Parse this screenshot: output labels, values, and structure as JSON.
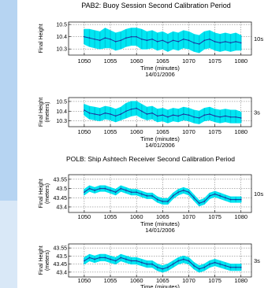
{
  "titles": {
    "buoy": "PAB2: Buoy Session  Second Calibration Period",
    "ship": "POLB: Ship Ashtech Receiver  Second Calibration Period"
  },
  "colors": {
    "background": "#b6d4f2",
    "figure": "#ffffff",
    "band": "#00e6f2",
    "trace": "#1f2f9a",
    "grid": "#666666"
  },
  "chart_data": [
    {
      "type": "line",
      "group": "PAB2",
      "ylabel": "Final Height",
      "xlabel": "Time (minutes)",
      "date": "14/01/2006",
      "xlim": [
        1047,
        1082
      ],
      "ylim": [
        10.25,
        10.52
      ],
      "xticks": [
        1050,
        1055,
        1060,
        1065,
        1070,
        1075,
        1080
      ],
      "yticks": [
        "10.5",
        "10.4",
        "10.3"
      ],
      "ytick_values": [
        10.5,
        10.4,
        10.3
      ],
      "tag": "10s",
      "grid": true,
      "series": [
        {
          "x": [
            1050,
            1051,
            1052,
            1053,
            1054,
            1055,
            1056,
            1057,
            1058,
            1059,
            1060,
            1061,
            1062,
            1063,
            1064,
            1065,
            1066,
            1067,
            1068,
            1069,
            1070,
            1071,
            1072,
            1073,
            1074,
            1075,
            1076,
            1077,
            1078,
            1079,
            1080
          ],
          "mean": [
            10.4,
            10.39,
            10.38,
            10.37,
            10.39,
            10.38,
            10.36,
            10.37,
            10.39,
            10.4,
            10.4,
            10.38,
            10.37,
            10.38,
            10.36,
            10.37,
            10.35,
            10.37,
            10.36,
            10.38,
            10.37,
            10.35,
            10.34,
            10.37,
            10.38,
            10.36,
            10.35,
            10.36,
            10.35,
            10.36,
            10.35
          ],
          "lower": [
            10.34,
            10.32,
            10.31,
            10.3,
            10.31,
            10.31,
            10.29,
            10.3,
            10.32,
            10.33,
            10.33,
            10.3,
            10.3,
            10.31,
            10.29,
            10.3,
            10.28,
            10.3,
            10.29,
            10.31,
            10.3,
            10.28,
            10.27,
            10.3,
            10.31,
            10.29,
            10.28,
            10.29,
            10.28,
            10.29,
            10.29
          ],
          "upper": [
            10.46,
            10.46,
            10.45,
            10.44,
            10.47,
            10.45,
            10.43,
            10.44,
            10.46,
            10.47,
            10.47,
            10.46,
            10.44,
            10.45,
            10.43,
            10.44,
            10.42,
            10.44,
            10.43,
            10.45,
            10.44,
            10.42,
            10.41,
            10.44,
            10.45,
            10.43,
            10.42,
            10.43,
            10.42,
            10.43,
            10.41
          ]
        }
      ]
    },
    {
      "type": "line",
      "group": "PAB2",
      "ylabel": "Final Height",
      "sublabel": "(meters)",
      "xlabel": "Time (minutes)",
      "date": "14/01/2006",
      "xlim": [
        1047,
        1082
      ],
      "ylim": [
        10.24,
        10.54
      ],
      "xticks": [
        1050,
        1055,
        1060,
        1065,
        1070,
        1075,
        1080
      ],
      "yticks": [
        "10.5",
        "10.4",
        "10.3"
      ],
      "ytick_values": [
        10.5,
        10.4,
        10.3
      ],
      "tag": "3s",
      "grid": true,
      "series": [
        {
          "x": [
            1050,
            1051,
            1052,
            1053,
            1054,
            1055,
            1056,
            1057,
            1058,
            1059,
            1060,
            1061,
            1062,
            1063,
            1064,
            1065,
            1066,
            1067,
            1068,
            1069,
            1070,
            1071,
            1072,
            1073,
            1074,
            1075,
            1076,
            1077,
            1078,
            1079,
            1080
          ],
          "mean": [
            10.41,
            10.38,
            10.37,
            10.36,
            10.38,
            10.37,
            10.35,
            10.37,
            10.4,
            10.42,
            10.43,
            10.4,
            10.37,
            10.38,
            10.35,
            10.36,
            10.34,
            10.36,
            10.35,
            10.37,
            10.36,
            10.34,
            10.33,
            10.36,
            10.37,
            10.35,
            10.34,
            10.35,
            10.34,
            10.34,
            10.33
          ],
          "lower": [
            10.36,
            10.32,
            10.31,
            10.3,
            10.32,
            10.31,
            10.29,
            10.31,
            10.33,
            10.35,
            10.36,
            10.33,
            10.31,
            10.32,
            10.29,
            10.3,
            10.28,
            10.3,
            10.29,
            10.31,
            10.3,
            10.28,
            10.27,
            10.3,
            10.31,
            10.29,
            10.28,
            10.29,
            10.28,
            10.28,
            10.28
          ],
          "upper": [
            10.47,
            10.45,
            10.44,
            10.43,
            10.45,
            10.44,
            10.42,
            10.44,
            10.48,
            10.5,
            10.5,
            10.47,
            10.44,
            10.45,
            10.42,
            10.43,
            10.41,
            10.43,
            10.42,
            10.44,
            10.43,
            10.41,
            10.4,
            10.43,
            10.44,
            10.42,
            10.41,
            10.42,
            10.41,
            10.41,
            10.39
          ]
        }
      ]
    },
    {
      "type": "line",
      "group": "POLB",
      "ylabel": "Final Height",
      "sublabel": "(meters)",
      "xlabel": "Time (minutes)",
      "date": "14/01/2006",
      "xlim": [
        1047,
        1082
      ],
      "ylim": [
        43.37,
        43.575
      ],
      "xticks": [
        1050,
        1055,
        1060,
        1065,
        1070,
        1075,
        1080
      ],
      "yticks": [
        "43.55",
        "43.5",
        "43.45",
        "43.4"
      ],
      "ytick_values": [
        43.55,
        43.5,
        43.45,
        43.4
      ],
      "tag": "10s",
      "grid": true,
      "series": [
        {
          "x": [
            1050,
            1051,
            1052,
            1053,
            1054,
            1055,
            1056,
            1057,
            1058,
            1059,
            1060,
            1061,
            1062,
            1063,
            1064,
            1065,
            1066,
            1067,
            1068,
            1069,
            1070,
            1071,
            1072,
            1073,
            1074,
            1075,
            1076,
            1077,
            1078,
            1079,
            1080
          ],
          "mean": [
            43.48,
            43.5,
            43.49,
            43.5,
            43.5,
            43.49,
            43.48,
            43.5,
            43.49,
            43.48,
            43.48,
            43.47,
            43.46,
            43.46,
            43.44,
            43.43,
            43.43,
            43.46,
            43.48,
            43.49,
            43.48,
            43.45,
            43.42,
            43.43,
            43.46,
            43.47,
            43.46,
            43.45,
            43.44,
            43.44,
            43.44
          ],
          "lower": [
            43.465,
            43.485,
            43.475,
            43.485,
            43.485,
            43.475,
            43.465,
            43.485,
            43.475,
            43.465,
            43.465,
            43.455,
            43.445,
            43.445,
            43.425,
            43.415,
            43.415,
            43.445,
            43.465,
            43.475,
            43.465,
            43.435,
            43.405,
            43.415,
            43.445,
            43.455,
            43.445,
            43.435,
            43.425,
            43.425,
            43.425
          ],
          "upper": [
            43.495,
            43.515,
            43.505,
            43.515,
            43.515,
            43.505,
            43.495,
            43.515,
            43.505,
            43.495,
            43.495,
            43.485,
            43.475,
            43.475,
            43.455,
            43.445,
            43.445,
            43.475,
            43.495,
            43.505,
            43.495,
            43.465,
            43.435,
            43.445,
            43.475,
            43.485,
            43.475,
            43.465,
            43.455,
            43.455,
            43.455
          ]
        }
      ]
    },
    {
      "type": "line",
      "group": "POLB",
      "ylabel": "Final Height",
      "sublabel": "(meters)",
      "xlabel": "Time (minutes)",
      "xlim": [
        1047,
        1082
      ],
      "ylim": [
        43.37,
        43.575
      ],
      "xticks": [
        1050,
        1055,
        1060,
        1065,
        1070,
        1075,
        1080
      ],
      "yticks": [
        "43.55",
        "43.5",
        "43.45",
        "43.4"
      ],
      "ytick_values": [
        43.55,
        43.5,
        43.45,
        43.4
      ],
      "tag": "3s",
      "grid": true,
      "series": [
        {
          "x": [
            1050,
            1051,
            1052,
            1053,
            1054,
            1055,
            1056,
            1057,
            1058,
            1059,
            1060,
            1061,
            1062,
            1063,
            1064,
            1065,
            1066,
            1067,
            1068,
            1069,
            1070,
            1071,
            1072,
            1073,
            1074,
            1075,
            1076,
            1077,
            1078,
            1079,
            1080
          ],
          "mean": [
            43.47,
            43.49,
            43.48,
            43.49,
            43.49,
            43.48,
            43.47,
            43.49,
            43.48,
            43.47,
            43.47,
            43.46,
            43.45,
            43.45,
            43.43,
            43.42,
            43.43,
            43.45,
            43.47,
            43.48,
            43.47,
            43.44,
            43.42,
            43.43,
            43.45,
            43.46,
            43.45,
            43.44,
            43.43,
            43.43,
            43.43
          ],
          "lower": [
            43.45,
            43.47,
            43.46,
            43.47,
            43.47,
            43.46,
            43.45,
            43.47,
            43.46,
            43.45,
            43.45,
            43.44,
            43.43,
            43.43,
            43.41,
            43.4,
            43.41,
            43.43,
            43.45,
            43.46,
            43.45,
            43.42,
            43.4,
            43.41,
            43.43,
            43.44,
            43.43,
            43.42,
            43.41,
            43.41,
            43.41
          ],
          "upper": [
            43.49,
            43.51,
            43.5,
            43.51,
            43.51,
            43.5,
            43.49,
            43.51,
            43.5,
            43.49,
            43.49,
            43.48,
            43.47,
            43.47,
            43.45,
            43.44,
            43.45,
            43.47,
            43.49,
            43.5,
            43.49,
            43.46,
            43.44,
            43.45,
            43.47,
            43.48,
            43.47,
            43.46,
            43.45,
            43.45,
            43.45
          ]
        }
      ]
    }
  ]
}
